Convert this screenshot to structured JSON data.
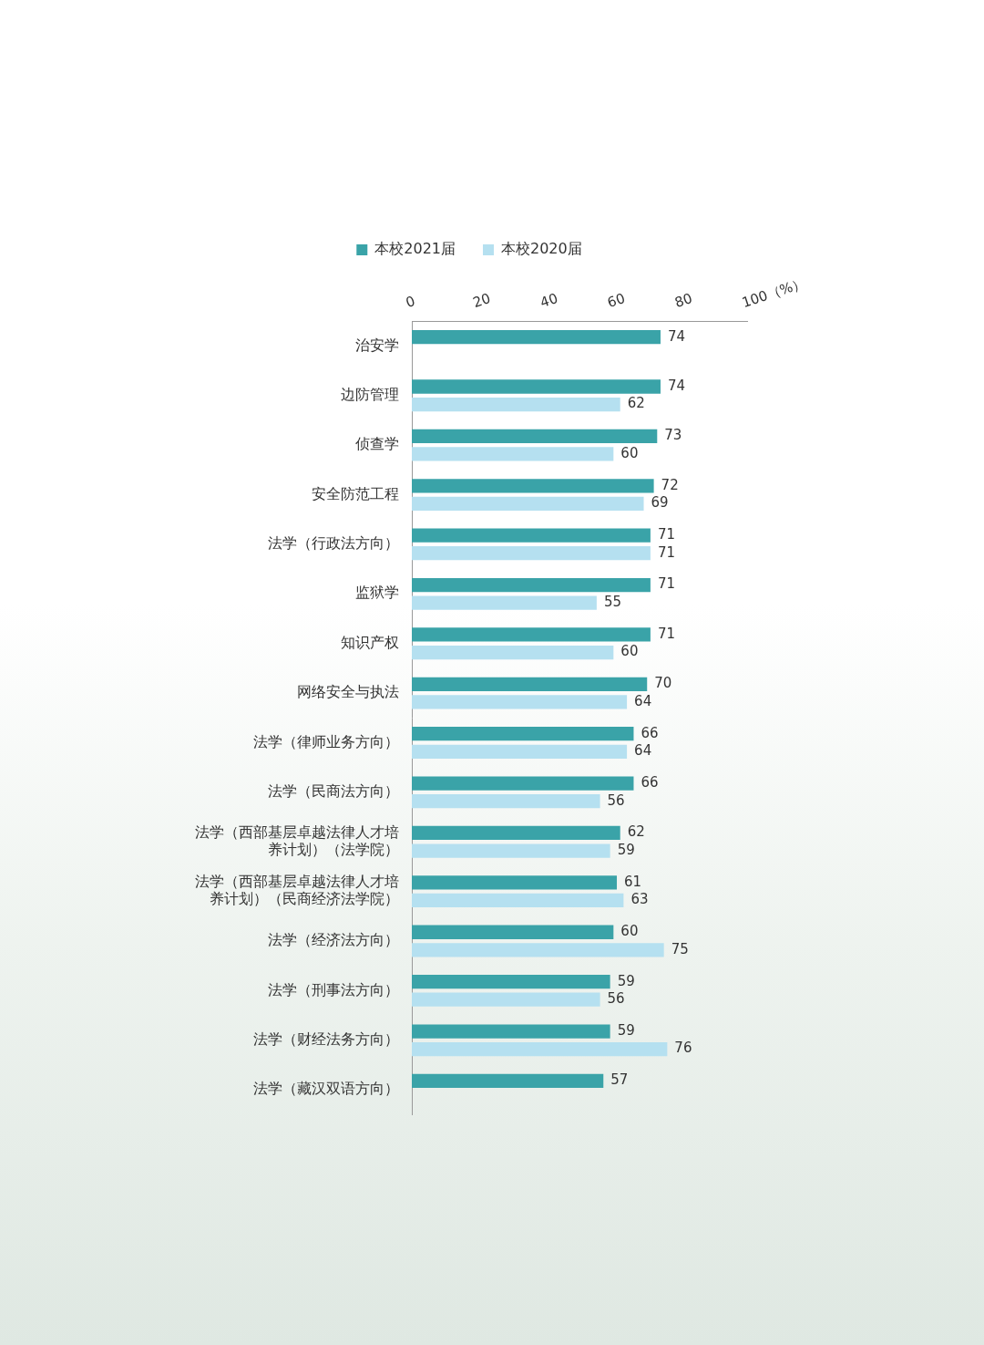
{
  "chart_data": {
    "type": "bar",
    "orientation": "horizontal",
    "categories": [
      "治安学",
      "边防管理",
      "侦查学",
      "安全防范工程",
      "法学（行政法方向）",
      "监狱学",
      "知识产权",
      "网络安全与执法",
      "法学（律师业务方向）",
      "法学（民商法方向）",
      [
        "法学（西部基层卓越法律人才培",
        "养计划）（法学院）"
      ],
      [
        "法学（西部基层卓越法律人才培",
        "养计划）（民商经济法学院）"
      ],
      "法学（经济法方向）",
      "法学（刑事法方向）",
      "法学（财经法务方向）",
      "法学（藏汉双语方向）"
    ],
    "series": [
      {
        "name": "本校2021届",
        "color": "#3aa3a8",
        "values": [
          74,
          74,
          73,
          72,
          71,
          71,
          71,
          70,
          66,
          66,
          62,
          61,
          60,
          59,
          59,
          57
        ]
      },
      {
        "name": "本校2020届",
        "color": "#b5e0f0",
        "values": [
          null,
          62,
          60,
          69,
          71,
          55,
          60,
          64,
          64,
          56,
          59,
          63,
          75,
          56,
          76,
          null
        ]
      }
    ],
    "xlim": [
      0,
      100
    ],
    "xticks": [
      0,
      20,
      40,
      60,
      80,
      {
        "value": 100,
        "label": "100（%）"
      }
    ],
    "grid": false,
    "legend": "top",
    "data_labels": true
  }
}
